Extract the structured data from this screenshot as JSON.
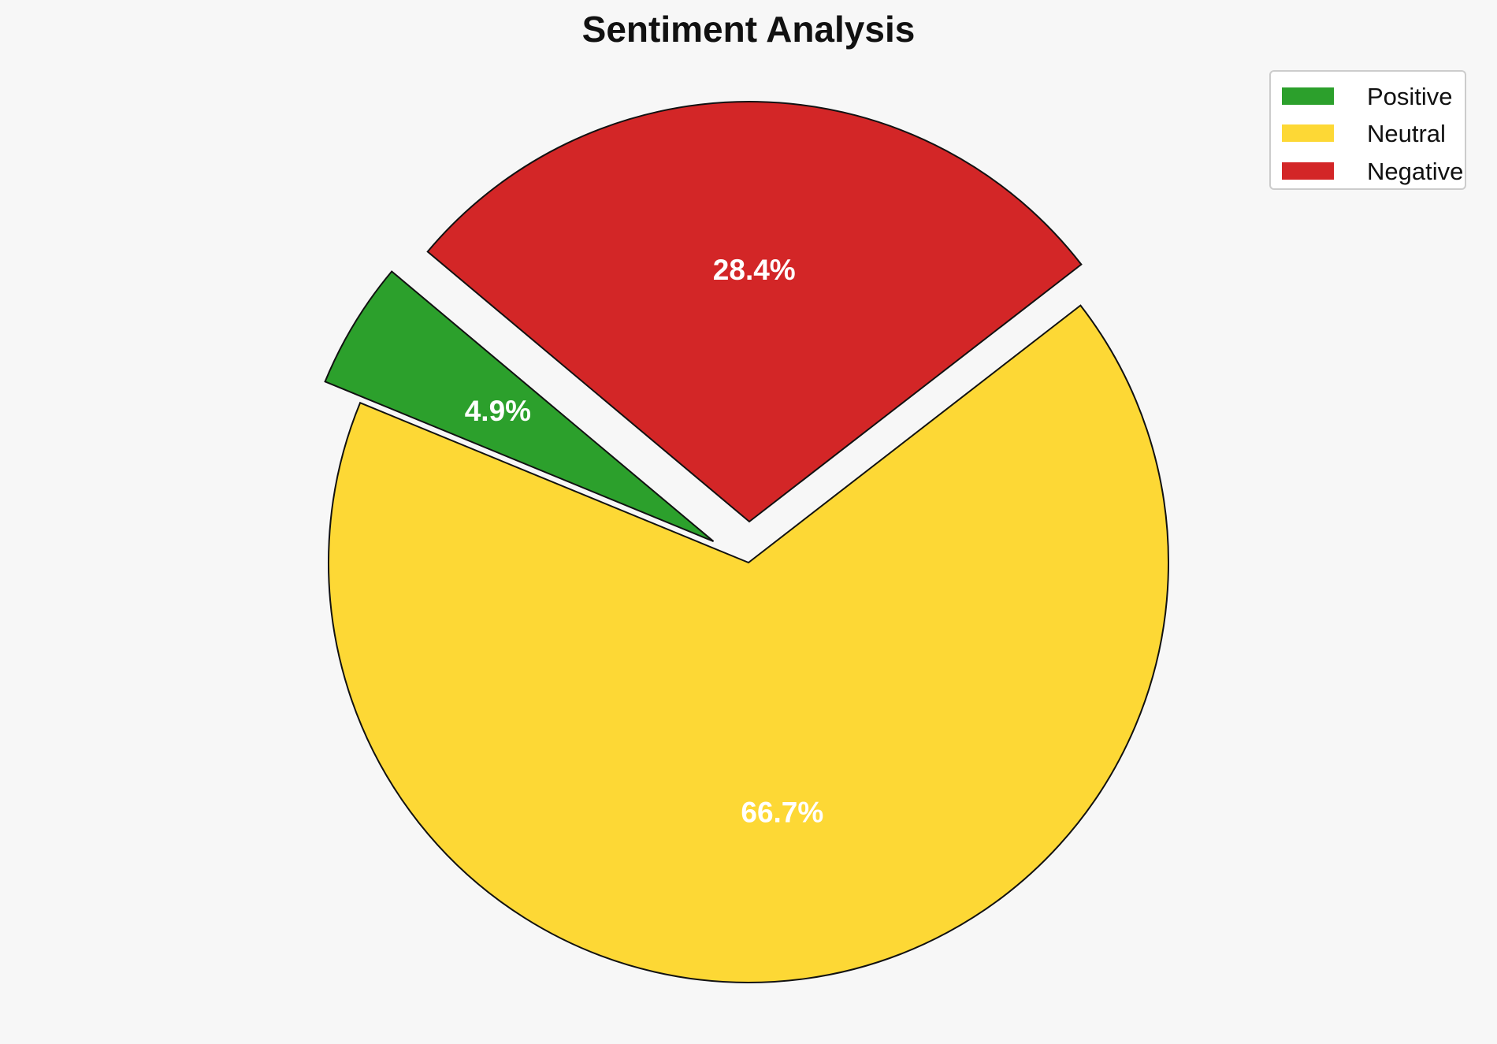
{
  "chart_data": {
    "type": "pie",
    "title": "Sentiment Analysis",
    "categories": [
      "Positive",
      "Neutral",
      "Negative"
    ],
    "values": [
      4.9,
      66.7,
      28.4
    ],
    "value_labels": [
      "4.9%",
      "66.7%",
      "28.4%"
    ],
    "colors": [
      "#2ca02c",
      "#fdd835",
      "#d32627"
    ],
    "exploded": [
      true,
      false,
      true
    ],
    "legend": {
      "position": "top-right",
      "entries": [
        "Positive",
        "Neutral",
        "Negative"
      ]
    }
  }
}
